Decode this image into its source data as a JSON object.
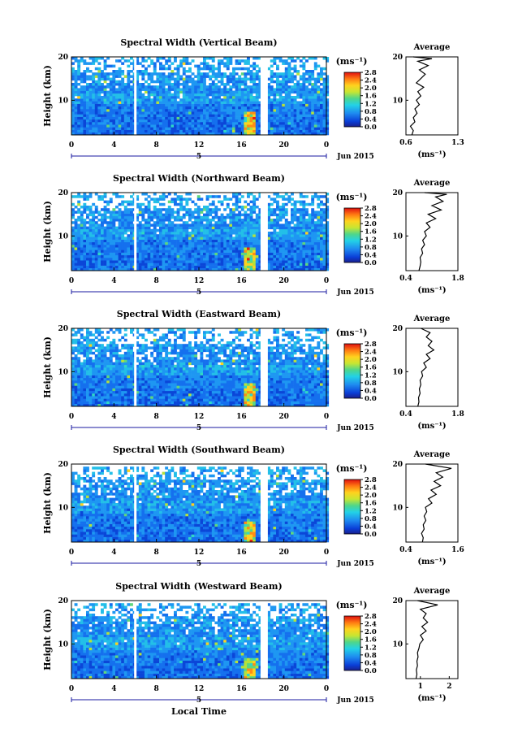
{
  "figure": {
    "xlabel": "Local Time",
    "date_label": "Jun 2015",
    "day_label": "5",
    "avg_title": "Average",
    "colorbar_unit": "(ms⁻¹)",
    "avg_xlabel": "(ms⁻¹)"
  },
  "chart_data": [
    {
      "type": "heatmap",
      "title": "Spectral Width (Vertical Beam)",
      "ylabel": "Height (km)",
      "x_ticks": [
        "0",
        "4",
        "8",
        "12",
        "16",
        "20",
        "0"
      ],
      "y_ticks": [
        "10",
        "20"
      ],
      "xlim": [
        0,
        24
      ],
      "ylim": [
        2,
        20
      ],
      "colorbar_ticks": [
        "0.0",
        "0.4",
        "0.8",
        "1.2",
        "1.6",
        "2.0",
        "2.4",
        "2.8"
      ],
      "avg": {
        "xlim": [
          0.6,
          1.3
        ],
        "x_ticks": [
          "0.6",
          "1.3"
        ],
        "y_ticks": [
          "10",
          "20"
        ],
        "profile": [
          [
            0.68,
            2
          ],
          [
            0.7,
            3
          ],
          [
            0.66,
            4
          ],
          [
            0.72,
            5
          ],
          [
            0.7,
            6
          ],
          [
            0.75,
            7
          ],
          [
            0.72,
            8
          ],
          [
            0.78,
            9
          ],
          [
            0.74,
            10
          ],
          [
            0.8,
            11
          ],
          [
            0.76,
            12
          ],
          [
            0.84,
            13
          ],
          [
            0.74,
            14
          ],
          [
            0.8,
            15
          ],
          [
            0.86,
            16
          ],
          [
            0.78,
            17
          ],
          [
            0.9,
            18
          ],
          [
            0.76,
            19
          ],
          [
            0.95,
            19.6
          ],
          [
            0.7,
            20
          ]
        ]
      }
    },
    {
      "type": "heatmap",
      "title": "Spectral Width (Northward Beam)",
      "ylabel": "Height (km)",
      "x_ticks": [
        "0",
        "4",
        "8",
        "12",
        "16",
        "20",
        "0"
      ],
      "y_ticks": [
        "10",
        "20"
      ],
      "xlim": [
        0,
        24
      ],
      "ylim": [
        2,
        20
      ],
      "colorbar_ticks": [
        "0.0",
        "0.4",
        "0.8",
        "1.2",
        "1.6",
        "2.0",
        "2.4",
        "2.8"
      ],
      "avg": {
        "xlim": [
          0.4,
          1.8
        ],
        "x_ticks": [
          "0.4",
          "1.8"
        ],
        "y_ticks": [
          "10",
          "20"
        ],
        "profile": [
          [
            0.75,
            2
          ],
          [
            0.78,
            3
          ],
          [
            0.8,
            4
          ],
          [
            0.78,
            5
          ],
          [
            0.85,
            6
          ],
          [
            0.82,
            7
          ],
          [
            0.9,
            8
          ],
          [
            0.85,
            9
          ],
          [
            0.95,
            10
          ],
          [
            0.9,
            11
          ],
          [
            1.05,
            12
          ],
          [
            0.95,
            13
          ],
          [
            1.2,
            14
          ],
          [
            1.0,
            15
          ],
          [
            1.35,
            16
          ],
          [
            1.1,
            17
          ],
          [
            1.4,
            18
          ],
          [
            1.2,
            19
          ],
          [
            1.5,
            19.6
          ],
          [
            0.9,
            20
          ]
        ]
      }
    },
    {
      "type": "heatmap",
      "title": "Spectral Width (Eastward Beam)",
      "ylabel": "Height (km)",
      "x_ticks": [
        "0",
        "4",
        "8",
        "12",
        "16",
        "20",
        "0"
      ],
      "y_ticks": [
        "10",
        "20"
      ],
      "xlim": [
        0,
        24
      ],
      "ylim": [
        2,
        20
      ],
      "colorbar_ticks": [
        "0.0",
        "0.4",
        "0.8",
        "1.2",
        "1.6",
        "2.0",
        "2.4",
        "2.8"
      ],
      "avg": {
        "xlim": [
          0.4,
          1.8
        ],
        "x_ticks": [
          "0.4",
          "1.8"
        ],
        "y_ticks": [
          "10",
          "20"
        ],
        "profile": [
          [
            0.72,
            2
          ],
          [
            0.75,
            3
          ],
          [
            0.74,
            4
          ],
          [
            0.78,
            5
          ],
          [
            0.76,
            6
          ],
          [
            0.8,
            7
          ],
          [
            0.78,
            8
          ],
          [
            0.85,
            9
          ],
          [
            0.82,
            10
          ],
          [
            0.95,
            11
          ],
          [
            0.88,
            12
          ],
          [
            1.05,
            13
          ],
          [
            0.95,
            14
          ],
          [
            1.15,
            15
          ],
          [
            1.0,
            16
          ],
          [
            1.1,
            17
          ],
          [
            0.95,
            18
          ],
          [
            1.05,
            19
          ],
          [
            0.8,
            20
          ]
        ]
      }
    },
    {
      "type": "heatmap",
      "title": "Spectral Width (Southward Beam)",
      "ylabel": "Height (km)",
      "x_ticks": [
        "0",
        "4",
        "8",
        "12",
        "16",
        "20",
        "0"
      ],
      "y_ticks": [
        "10",
        "20"
      ],
      "xlim": [
        0,
        24
      ],
      "ylim": [
        2,
        20
      ],
      "colorbar_ticks": [
        "0.0",
        "0.4",
        "0.8",
        "1.2",
        "1.6",
        "2.0",
        "2.4",
        "2.8"
      ],
      "avg": {
        "xlim": [
          0.4,
          1.6
        ],
        "x_ticks": [
          "0.4",
          "1.6"
        ],
        "y_ticks": [
          "10",
          "20"
        ],
        "profile": [
          [
            0.78,
            2
          ],
          [
            0.8,
            3
          ],
          [
            0.76,
            4
          ],
          [
            0.82,
            5
          ],
          [
            0.8,
            6
          ],
          [
            0.86,
            7
          ],
          [
            0.82,
            8
          ],
          [
            0.88,
            9
          ],
          [
            0.85,
            10
          ],
          [
            1.0,
            11
          ],
          [
            0.92,
            12
          ],
          [
            1.1,
            13
          ],
          [
            0.98,
            14
          ],
          [
            1.2,
            15
          ],
          [
            1.05,
            16
          ],
          [
            1.25,
            17
          ],
          [
            1.1,
            18
          ],
          [
            1.45,
            19
          ],
          [
            0.85,
            20
          ]
        ]
      }
    },
    {
      "type": "heatmap",
      "title": "Spectral Width (Westward Beam)",
      "ylabel": "Height (km)",
      "x_ticks": [
        "0",
        "4",
        "8",
        "12",
        "16",
        "20",
        "0"
      ],
      "y_ticks": [
        "10",
        "20"
      ],
      "xlim": [
        0,
        24
      ],
      "ylim": [
        2,
        20
      ],
      "colorbar_ticks": [
        "0.0",
        "0.4",
        "0.8",
        "1.2",
        "1.6",
        "2.0",
        "2.4",
        "2.8"
      ],
      "avg": {
        "xlim": [
          0.5,
          2.3
        ],
        "x_ticks": [
          "1",
          "2"
        ],
        "y_ticks": [
          "10",
          "20"
        ],
        "profile": [
          [
            0.85,
            2
          ],
          [
            0.88,
            3
          ],
          [
            0.86,
            4
          ],
          [
            0.9,
            5
          ],
          [
            0.88,
            6
          ],
          [
            0.92,
            7
          ],
          [
            0.9,
            8
          ],
          [
            0.95,
            9
          ],
          [
            0.98,
            10
          ],
          [
            1.1,
            11
          ],
          [
            1.0,
            12
          ],
          [
            1.2,
            13
          ],
          [
            1.05,
            14
          ],
          [
            1.25,
            15
          ],
          [
            1.1,
            16
          ],
          [
            1.2,
            17
          ],
          [
            1.0,
            18
          ],
          [
            1.6,
            19
          ],
          [
            0.9,
            20
          ]
        ]
      }
    }
  ]
}
